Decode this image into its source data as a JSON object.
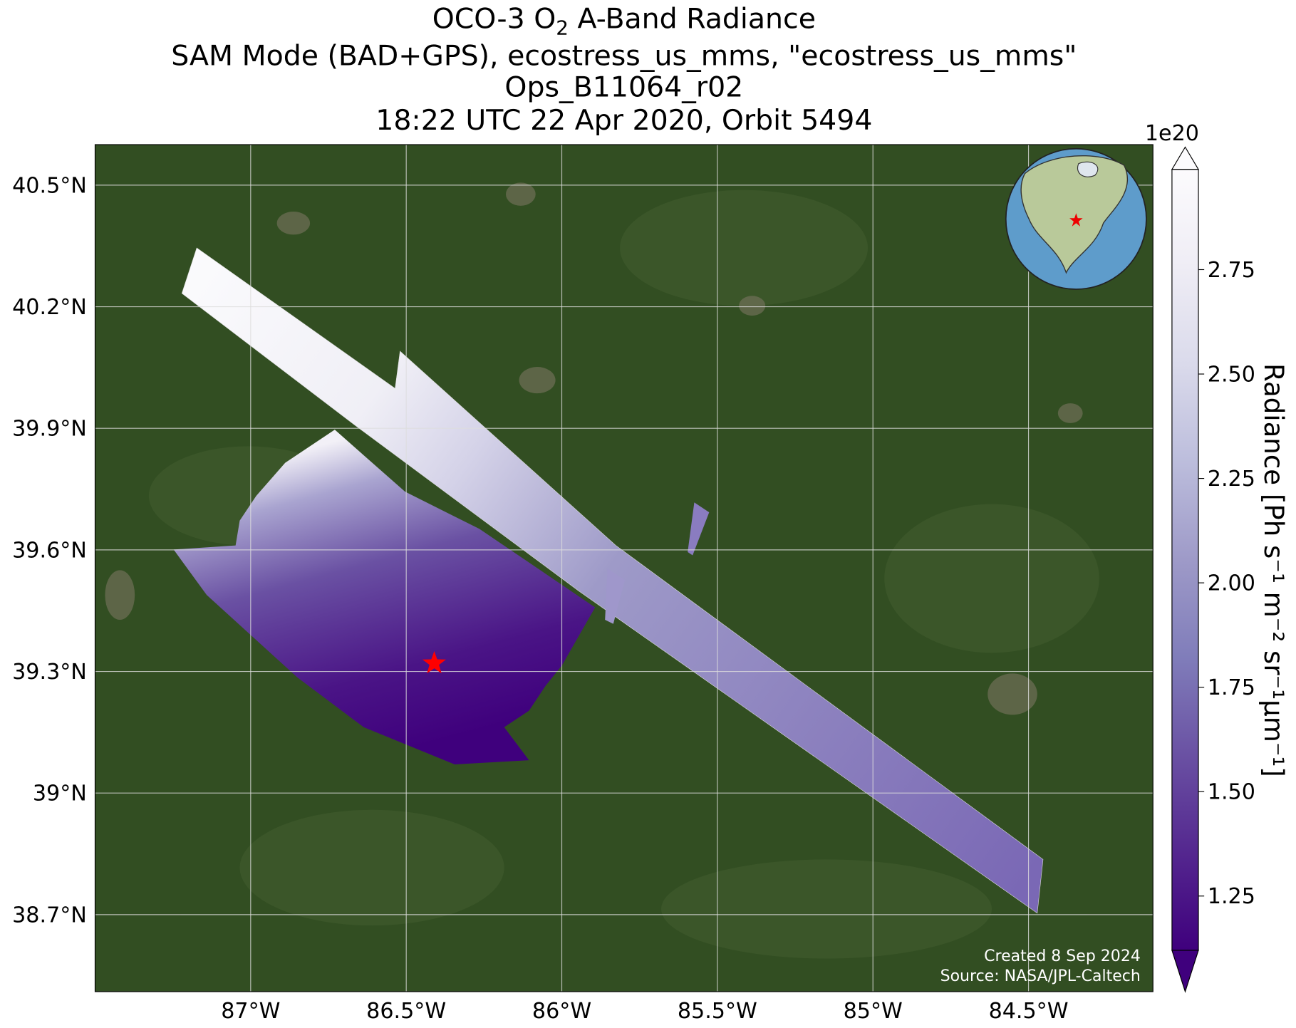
{
  "title": {
    "line1": [
      "OCO-3 O",
      "2",
      " A-Band Radiance"
    ],
    "line2": "SAM Mode (BAD+GPS), ecostress_us_mms, \"ecostress_us_mms\"",
    "line3": "Ops_B11064_r02",
    "line4": "18:22 UTC 22 Apr 2020, Orbit 5494"
  },
  "map": {
    "lonlim": [
      -87.5,
      -84.1
    ],
    "latlim": [
      38.51,
      40.6
    ],
    "lonticks": [
      {
        "value": -87,
        "label": "87°W"
      },
      {
        "value": -86.5,
        "label": "86.5°W"
      },
      {
        "value": -86,
        "label": "86°W"
      },
      {
        "value": -85.5,
        "label": "85.5°W"
      },
      {
        "value": -85,
        "label": "85°W"
      },
      {
        "value": -84.5,
        "label": "84.5°W"
      }
    ],
    "latticks": [
      {
        "value": 38.7,
        "label": "38.7°N"
      },
      {
        "value": 39,
        "label": "39°N"
      },
      {
        "value": 39.3,
        "label": "39.3°N"
      },
      {
        "value": 39.6,
        "label": "39.6°N"
      },
      {
        "value": 39.9,
        "label": "39.9°N"
      },
      {
        "value": 40.2,
        "label": "40.2°N"
      },
      {
        "value": 40.5,
        "label": "40.5°N"
      }
    ],
    "grid": true,
    "target": {
      "lon": -86.41,
      "lat": 39.32,
      "color": "#ff0000"
    },
    "credits": [
      "Created 8 Sep 2024",
      "Source: NASA/JPL-Caltech"
    ]
  },
  "colorbar": {
    "label": "Radiance [Ph s⁻¹ m⁻² sr⁻¹μm⁻¹]",
    "exponent": "1e20",
    "lim": [
      1.12,
      2.99
    ],
    "ticks": [
      {
        "value": 1.25,
        "label": "1.25"
      },
      {
        "value": 1.5,
        "label": "1.50"
      },
      {
        "value": 1.75,
        "label": "1.75"
      },
      {
        "value": 2.0,
        "label": "2.00"
      },
      {
        "value": 2.25,
        "label": "2.25"
      },
      {
        "value": 2.5,
        "label": "2.50"
      },
      {
        "value": 2.75,
        "label": "2.75"
      }
    ],
    "colormap": [
      "#3f007d",
      "#54278f",
      "#6a51a3",
      "#807dba",
      "#9e9ac8",
      "#bcbddc",
      "#dadaeb",
      "#efedf5",
      "#fcfbfd"
    ]
  }
}
